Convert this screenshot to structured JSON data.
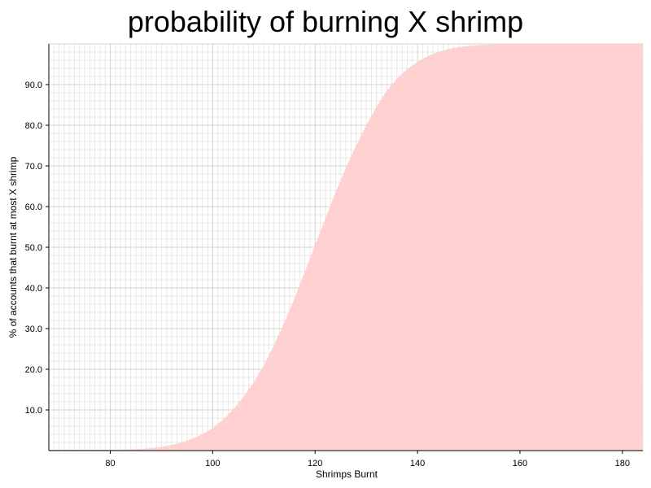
{
  "chart_data": {
    "type": "area",
    "title": "probability of burning X shrimp",
    "xlabel": "Shrimps Burnt",
    "ylabel": "% of accounts that burnt at most X shrimp",
    "xlim": [
      68,
      184
    ],
    "ylim": [
      0,
      100
    ],
    "x_ticks": [
      80,
      100,
      120,
      140,
      160,
      180
    ],
    "y_ticks": [
      10.0,
      20.0,
      30.0,
      40.0,
      50.0,
      60.0,
      70.0,
      80.0,
      90.0
    ],
    "grid": true,
    "fill_color": "#ffcccc",
    "series": [
      {
        "x": [
          68,
          80,
          85,
          88,
          90,
          92,
          94,
          96,
          98,
          100,
          102,
          104,
          106,
          108,
          110,
          112,
          114,
          116,
          118,
          120,
          122,
          124,
          126,
          128,
          130,
          132,
          134,
          136,
          138,
          140,
          142,
          144,
          146,
          148,
          150,
          152,
          154,
          156,
          158,
          160,
          170,
          184
        ],
        "y": [
          0.2,
          0.2,
          0.3,
          0.6,
          0.9,
          1.4,
          2.0,
          2.9,
          4.0,
          5.5,
          7.6,
          10.1,
          13.2,
          16.8,
          21.0,
          26.0,
          31.5,
          37.5,
          44.0,
          50.5,
          57.0,
          63.5,
          69.5,
          75.0,
          80.0,
          84.5,
          88.5,
          91.5,
          93.8,
          95.6,
          97.0,
          98.0,
          98.7,
          99.2,
          99.5,
          99.7,
          99.8,
          99.9,
          100,
          100,
          100,
          100
        ]
      }
    ]
  }
}
